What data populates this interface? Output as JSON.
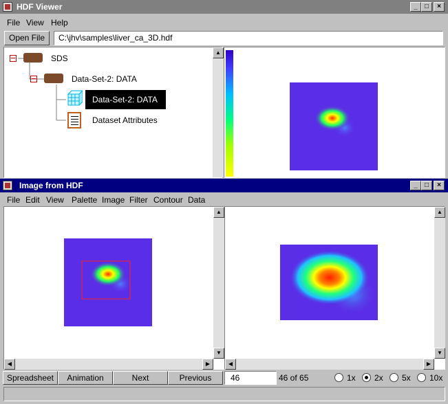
{
  "main_window": {
    "title": "HDF Viewer",
    "menu": [
      "File",
      "View",
      "Help"
    ],
    "open_file_label": "Open File",
    "file_path": "C:\\jhv\\samples\\liver_ca_3D.hdf",
    "tree": {
      "root": "SDS",
      "group": "Data-Set-2: DATA",
      "dataset": "Data-Set-2: DATA",
      "attributes": "Dataset Attributes"
    }
  },
  "image_window": {
    "title": "Image from HDF",
    "menu": [
      "File",
      "Edit",
      "View",
      "Palette",
      "Image",
      "Filter",
      "Contour",
      "Data"
    ],
    "buttons": {
      "spreadsheet": "Spreadsheet",
      "animation": "Animation",
      "next": "Next",
      "previous": "Previous"
    },
    "frame_input": "46",
    "frame_status": "46 of 65",
    "zoom_options": [
      "1x",
      "2x",
      "5x",
      "10x"
    ],
    "zoom_selected": "2x"
  },
  "colors": {
    "active_title": "#000080",
    "inactive_title": "#808080",
    "image_background": "#5a2ee6",
    "selection": "#000000"
  }
}
